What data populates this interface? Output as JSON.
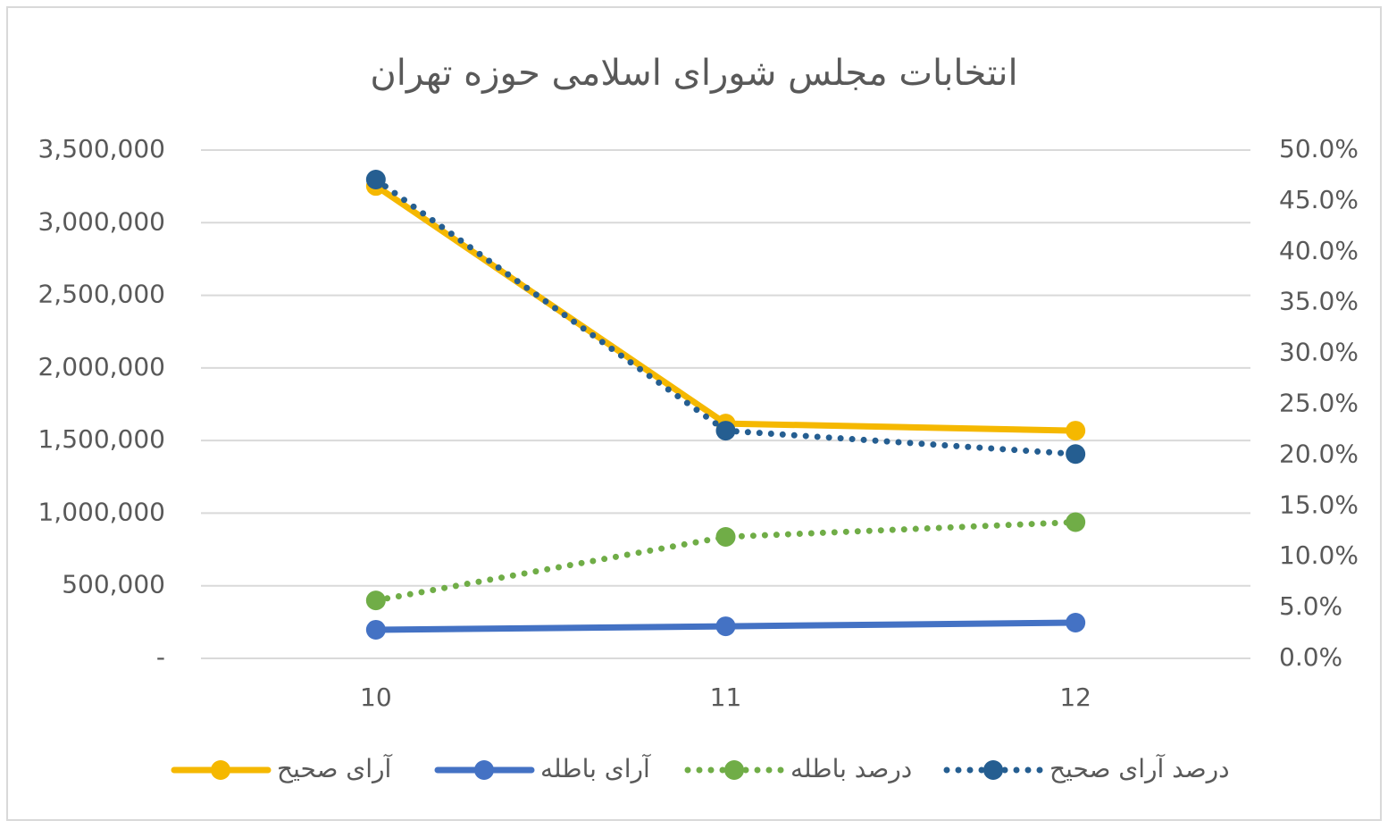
{
  "chart_data": {
    "type": "line",
    "title": "انتخابات مجلس شورای اسلامی حوزه تهران",
    "categories": [
      "10",
      "11",
      "12"
    ],
    "series": [
      {
        "name": "آرای صحیح",
        "color": "#f5b800",
        "line_style": "solid",
        "values": [
          3253000,
          1617000,
          1568000
        ]
      },
      {
        "name": "آرای باطله",
        "color": "#4472c4",
        "line_style": "solid",
        "values": [
          197000,
          221000,
          246000
        ]
      },
      {
        "name": "درصد باطله",
        "color": "#70ad47",
        "line_style": "dotted",
        "axis": "y2",
        "values": [
          5.7,
          11.95,
          13.4
        ]
      },
      {
        "name": "درصد آرای صحیح",
        "color": "#255e91",
        "line_style": "dotted",
        "axis": "y2",
        "values": [
          47.1,
          22.4,
          20.1
        ]
      }
    ],
    "ylim": [
      0,
      3500000
    ],
    "yticks": [
      {
        "value": 0,
        "label": "-"
      },
      {
        "value": 500000,
        "label": "500,000"
      },
      {
        "value": 1000000,
        "label": "1,000,000"
      },
      {
        "value": 1500000,
        "label": "1,500,000"
      },
      {
        "value": 2000000,
        "label": "2,000,000"
      },
      {
        "value": 2500000,
        "label": "2,500,000"
      },
      {
        "value": 3000000,
        "label": "3,000,000"
      },
      {
        "value": 3500000,
        "label": "3,500,000"
      }
    ],
    "y2lim": [
      0,
      50
    ],
    "y2ticks": [
      {
        "value": 0,
        "label": "0.0%"
      },
      {
        "value": 5,
        "label": "5.0%"
      },
      {
        "value": 10,
        "label": "10.0%"
      },
      {
        "value": 15,
        "label": "15.0%"
      },
      {
        "value": 20,
        "label": "20.0%"
      },
      {
        "value": 25,
        "label": "25.0%"
      },
      {
        "value": 30,
        "label": "30.0%"
      },
      {
        "value": 35,
        "label": "35.0%"
      },
      {
        "value": 40,
        "label": "40.0%"
      },
      {
        "value": 45,
        "label": "45.0%"
      },
      {
        "value": 50,
        "label": "50.0%"
      }
    ],
    "grid": true,
    "legend": "bottom"
  }
}
